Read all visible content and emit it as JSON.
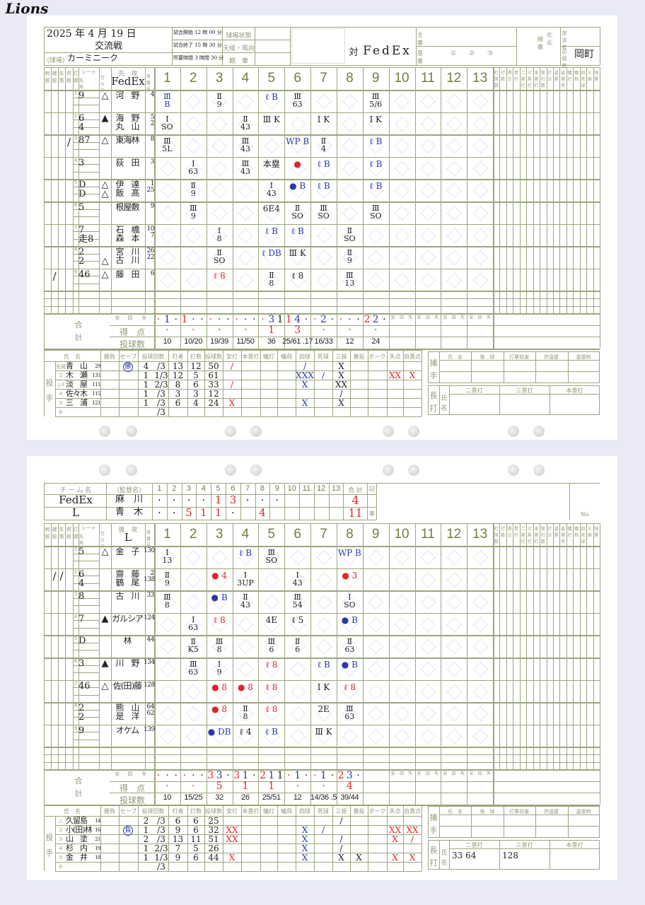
{
  "colors": {
    "grid": "#9aa67e",
    "inning_number": "#6e7f3e",
    "blue_ink": "#2a3aa8",
    "red_ink": "#e0262a",
    "green_ink": "#2f8a5a",
    "background": "#e9eaf6"
  },
  "header": {
    "date": "2025 年 4 月 19 日",
    "game_type": "交流戦",
    "venue_label": "(球場)",
    "venue": "カーミニーク",
    "start": "試合開始 12 時 00 分",
    "end": "試合終了 15 時 30 分",
    "duration": "所要時間 3 時間 30 分",
    "field_state": "球場状態",
    "weather": "天候・風向",
    "attendance": "観　衆",
    "logo": "Lions",
    "vs": "対",
    "opponent": "FedEx",
    "umpire_home": "主審",
    "umpire_base": "塁審",
    "base_nums": "①　　②　　③",
    "umpire_line": "線審",
    "line_lr": "㊧　㊨",
    "broadcaster": "放送者",
    "scorer_label": "記録者",
    "scorer": "岡町"
  },
  "col_labels": {
    "small": [
      "刺殺",
      "補殺",
      "失策",
      "併殺",
      "打順"
    ],
    "seat": "シート",
    "starter": "先発",
    "bat_side": "打ち方",
    "number": "背番号",
    "innings": [
      "1",
      "2",
      "3",
      "4",
      "5",
      "6",
      "7",
      "8",
      "9",
      "10",
      "11",
      "12",
      "13"
    ],
    "stats": [
      "打席数",
      "打数",
      "得点",
      "単打",
      "二塁打",
      "三塁打",
      "本塁打",
      "塁打数",
      "打点",
      "盗塁",
      "盗塁死",
      "犠打",
      "犠飛",
      "四死球",
      "三振",
      "残塁"
    ],
    "totals": "合計",
    "hit_walk_err": [
      "安",
      "四",
      "失"
    ],
    "runs": "得　点",
    "pitches": "投球数"
  },
  "pitch_cols": [
    "氏　名",
    "勝負",
    "セーブ",
    "投球回数",
    "打者",
    "打数",
    "投球数",
    "安打",
    "本塁打",
    "犠打",
    "犠飛",
    "四球",
    "死球",
    "三振",
    "暴投",
    "ボーク",
    "失点",
    "自責点"
  ],
  "pitch_side": "投手",
  "catcher_box": {
    "label": "捕手",
    "cols": [
      "氏　名",
      "逸　球",
      "打撃妨害",
      "許盗塁",
      "盗塁刺"
    ]
  },
  "xbh_box": {
    "label": "長打",
    "name": "氏名",
    "cols": [
      "二塁打",
      "三塁打",
      "本塁打"
    ]
  },
  "top": {
    "side": "先　攻",
    "team": "FedEx",
    "lineup": [
      {
        "o": "1",
        "seat": "9",
        "tri": "△",
        "name": "河　野",
        "no": "4"
      },
      {
        "o": "2",
        "seat": "6\n4",
        "tri": "▲",
        "name": "海　野\n丸　山",
        "no": "5\n2"
      },
      {
        "o": "3",
        "seat": "87",
        "tri": "△",
        "name": "東海林",
        "no": "8",
        "marks": [
          "",
          "",
          "",
          "/"
        ]
      },
      {
        "o": "4",
        "seat": "3",
        "tri": "",
        "name": "荻　田",
        "no": "3"
      },
      {
        "o": "5",
        "seat": "D\nD",
        "tri": "△\n△",
        "name": "伊　達\n飯　髙",
        "no": "1\n25"
      },
      {
        "o": "6",
        "seat": "5",
        "tri": "",
        "name": "根屋敷",
        "no": "9"
      },
      {
        "o": "7",
        "seat": "7\n走8",
        "tri": "",
        "name": "石　橋\n森　本",
        "no": "10\n7"
      },
      {
        "o": "8",
        "seat": "2\n2",
        "tri": "\n△",
        "name": "宮　川\n古　川",
        "no": "26\n22"
      },
      {
        "o": "9",
        "seat": "46",
        "tri": "△",
        "name": "藤　田",
        "no": "6",
        "marks": [
          "",
          "/",
          "",
          ""
        ]
      }
    ],
    "plays": [
      [
        1,
        1,
        "Ⅲ\nB",
        "b"
      ],
      [
        1,
        3,
        "Ⅱ\n9",
        "k"
      ],
      [
        1,
        5,
        "ℓ B",
        "b"
      ],
      [
        1,
        6,
        "Ⅲ\n63",
        "k"
      ],
      [
        1,
        9,
        "Ⅲ\n5/6",
        "k"
      ],
      [
        2,
        1,
        "I\nSO",
        "k"
      ],
      [
        2,
        4,
        "Ⅱ\n43",
        "k"
      ],
      [
        2,
        5,
        "Ⅲ K",
        "k"
      ],
      [
        2,
        7,
        "I K",
        "k"
      ],
      [
        2,
        9,
        "I K",
        "k"
      ],
      [
        3,
        1,
        "Ⅲ\n5L",
        "k"
      ],
      [
        3,
        4,
        "Ⅲ\n43",
        "k"
      ],
      [
        3,
        6,
        "WP B",
        "b"
      ],
      [
        3,
        7,
        "Ⅱ\n4",
        "k"
      ],
      [
        3,
        9,
        "ℓ B",
        "b"
      ],
      [
        4,
        2,
        "I\n63",
        "k"
      ],
      [
        4,
        4,
        "Ⅲ\n43",
        "k"
      ],
      [
        4,
        5,
        "本塁",
        "k"
      ],
      [
        4,
        6,
        "●",
        "r"
      ],
      [
        4,
        7,
        "ℓ B",
        "b"
      ],
      [
        4,
        9,
        "ℓ B",
        "b"
      ],
      [
        5,
        2,
        "Ⅱ\n9",
        "k"
      ],
      [
        5,
        5,
        "I\n43",
        "k"
      ],
      [
        5,
        6,
        "● B",
        "b"
      ],
      [
        5,
        7,
        "ℓ B",
        "b"
      ],
      [
        5,
        9,
        "ℓ B",
        "b"
      ],
      [
        6,
        2,
        "Ⅲ\n9",
        "k"
      ],
      [
        6,
        5,
        "6E4",
        "k"
      ],
      [
        6,
        6,
        "Ⅱ\nSO",
        "k"
      ],
      [
        6,
        7,
        "Ⅲ\nSO",
        "k"
      ],
      [
        6,
        9,
        "Ⅲ\nSO",
        "k"
      ],
      [
        7,
        3,
        "I\n8",
        "k"
      ],
      [
        7,
        5,
        "ℓ B",
        "b"
      ],
      [
        7,
        6,
        "ℓ B",
        "b"
      ],
      [
        7,
        8,
        "Ⅱ\nSO",
        "k"
      ],
      [
        8,
        3,
        "Ⅱ\nSO",
        "k"
      ],
      [
        8,
        5,
        "ℓ DB",
        "b"
      ],
      [
        8,
        6,
        "Ⅲ K",
        "k"
      ],
      [
        8,
        8,
        "Ⅱ\n9",
        "k"
      ],
      [
        9,
        3,
        "ℓ 8",
        "r"
      ],
      [
        9,
        5,
        "Ⅱ\n8",
        "k"
      ],
      [
        9,
        6,
        "ℓ 8",
        "k"
      ],
      [
        9,
        8,
        "Ⅲ\n13",
        "k"
      ]
    ],
    "totals": {
      "hwe": [
        [
          "·",
          "1",
          "·"
        ],
        [
          "1",
          "·",
          "·"
        ],
        [
          "·",
          "·",
          "·"
        ],
        [
          "·",
          "·",
          "·"
        ],
        [
          "·",
          "3",
          "1"
        ],
        [
          "1",
          "4",
          "·"
        ],
        [
          "·",
          "2",
          "·"
        ],
        [
          "·",
          "·",
          "·"
        ],
        [
          "2",
          "2",
          "·"
        ]
      ],
      "hwe_colors": [
        "r",
        "b",
        "k"
      ],
      "runs": [
        "·",
        "·",
        "·",
        "·",
        "1",
        "3",
        "·",
        "·",
        "·"
      ],
      "pitches": [
        "10",
        "10/20",
        "19/39",
        "11/50",
        "36",
        "25/61 .17",
        "16/33",
        "12",
        "24"
      ]
    },
    "pitchers": [
      {
        "no": "先発",
        "name": "青　山",
        "num": "29",
        "wl": "",
        "save": "勝",
        "ip": "4",
        "ipf": "/3",
        "bf": "13",
        "ab": "12",
        "np": "50",
        "h": "/",
        "hr": "",
        "sh": "",
        "sf": "",
        "bb": "/",
        "hbp": "",
        "so": "X",
        "wp": "",
        "bk": "",
        "r": "",
        "er": ""
      },
      {
        "no": "2",
        "name": "木　瀬",
        "num": "131",
        "wl": "",
        "save": "",
        "ip": "1",
        "ipf": "1/3",
        "bf": "12",
        "ab": "5",
        "np": "61",
        "h": "",
        "hr": "",
        "sh": "",
        "sf": "",
        "bb": "XXX",
        "hbp": "/",
        "so": "X",
        "wp": "",
        "bk": "",
        "r": "XX",
        "er": "X"
      },
      {
        "no": "△3",
        "name": "淡　屋",
        "num": "111",
        "wl": "",
        "save": "",
        "ip": "1",
        "ipf": "2/3",
        "bf": "8",
        "ab": "6",
        "np": "33",
        "h": "/",
        "hr": "",
        "sh": "",
        "sf": "",
        "bb": "X",
        "hbp": "",
        "so": "XX",
        "wp": "",
        "bk": "",
        "r": "",
        "er": ""
      },
      {
        "no": "4",
        "name": "佐々木",
        "num": "115",
        "wl": "",
        "save": "",
        "ip": "1",
        "ipf": "/3",
        "bf": "3",
        "ab": "3",
        "np": "12",
        "h": "",
        "hr": "",
        "sh": "",
        "sf": "",
        "bb": "",
        "hbp": "",
        "so": "/",
        "wp": "",
        "bk": "",
        "r": "",
        "er": ""
      },
      {
        "no": "5",
        "name": "三　浦",
        "num": "121",
        "wl": "",
        "save": "",
        "ip": "1",
        "ipf": "/3",
        "bf": "6",
        "ab": "4",
        "np": "24",
        "h": "X",
        "hr": "",
        "sh": "",
        "sf": "",
        "bb": "X",
        "hbp": "",
        "so": "X",
        "wp": "",
        "bk": "",
        "r": "",
        "er": ""
      },
      {
        "no": "6",
        "name": "",
        "num": "",
        "wl": "",
        "save": "",
        "ip": "",
        "ipf": "/3",
        "bf": "",
        "ab": "",
        "np": "",
        "h": "",
        "hr": "",
        "sh": "",
        "sf": "",
        "bb": "",
        "hbp": "",
        "so": "",
        "wp": "",
        "bk": "",
        "r": "",
        "er": ""
      }
    ],
    "xbh": [
      "",
      "",
      ""
    ]
  },
  "linescore": {
    "headers": [
      "チ ー ム 名",
      "(監督名)",
      "1",
      "2",
      "3",
      "4",
      "5",
      "6",
      "7",
      "8",
      "9",
      "10",
      "11",
      "12",
      "13",
      "合 計",
      "記",
      "事",
      "No."
    ],
    "rows": [
      {
        "team": "FedEx",
        "manager": "麻　川",
        "inn": [
          "·",
          "·",
          "·",
          "·",
          "1",
          "3",
          "·",
          "·",
          "·",
          "",
          "",
          "",
          ""
        ],
        "total": "4"
      },
      {
        "team": "L",
        "manager": "青　木",
        "inn": [
          "·",
          "·",
          "5",
          "1",
          "1",
          "·",
          "",
          "4",
          "",
          "",
          "",
          "",
          ""
        ],
        "total": "11"
      }
    ]
  },
  "bottom": {
    "side": "後　攻",
    "team": "L",
    "lineup": [
      {
        "o": "1",
        "seat": "5",
        "tri": "△",
        "name": "金　子",
        "no": "130"
      },
      {
        "o": "2",
        "seat": "6\n4",
        "tri": "",
        "name": "齋　藤\n鶴　尾",
        "no": "2\n138",
        "marks": [
          "",
          "/",
          "/",
          ""
        ]
      },
      {
        "o": "3",
        "seat": "8",
        "tri": "",
        "name": "古　川",
        "no": "33"
      },
      {
        "o": "4",
        "seat": "7",
        "tri": "▲",
        "name": "ガルシア",
        "no": "124"
      },
      {
        "o": "5",
        "seat": "D",
        "tri": "",
        "name": "林",
        "no": "44"
      },
      {
        "o": "6",
        "seat": "3",
        "tri": "▲",
        "name": "川　野",
        "no": "134"
      },
      {
        "o": "7",
        "seat": "46",
        "tri": "△",
        "name": "佐(田)藤",
        "no": "128"
      },
      {
        "o": "8",
        "seat": "2\n2",
        "tri": "",
        "name": "熊　山\n是　洋",
        "no": "64\n62"
      },
      {
        "o": "9",
        "seat": "9",
        "tri": "",
        "name": "オケム",
        "no": "139"
      }
    ],
    "plays": [
      [
        1,
        1,
        "I\n13",
        "k"
      ],
      [
        1,
        4,
        "ℓ B",
        "b"
      ],
      [
        1,
        5,
        "Ⅲ\nSO",
        "k"
      ],
      [
        1,
        8,
        "WP B",
        "b"
      ],
      [
        2,
        1,
        "Ⅱ\n9",
        "k"
      ],
      [
        2,
        3,
        "● 4",
        "r"
      ],
      [
        2,
        4,
        "I\n3UP",
        "k"
      ],
      [
        2,
        6,
        "I\n43",
        "k"
      ],
      [
        2,
        8,
        "● 3",
        "r"
      ],
      [
        3,
        1,
        "Ⅲ\n8",
        "k"
      ],
      [
        3,
        3,
        "● B",
        "b"
      ],
      [
        3,
        4,
        "Ⅱ\n43",
        "k"
      ],
      [
        3,
        6,
        "Ⅲ\n54",
        "k"
      ],
      [
        3,
        8,
        "I\nSO",
        "k"
      ],
      [
        4,
        2,
        "I\n63",
        "k"
      ],
      [
        4,
        3,
        "ℓ 8",
        "r"
      ],
      [
        4,
        5,
        "4E",
        "k"
      ],
      [
        4,
        6,
        "ℓ 5",
        "k"
      ],
      [
        4,
        8,
        "● B",
        "b"
      ],
      [
        5,
        2,
        "Ⅱ\nK5",
        "k"
      ],
      [
        5,
        3,
        "Ⅲ\n8",
        "k"
      ],
      [
        5,
        5,
        "Ⅲ\n6",
        "k"
      ],
      [
        5,
        6,
        "Ⅱ\n6",
        "k"
      ],
      [
        5,
        8,
        "Ⅱ\n63",
        "k"
      ],
      [
        6,
        2,
        "Ⅲ\n63",
        "k"
      ],
      [
        6,
        3,
        "I\n9",
        "k"
      ],
      [
        6,
        5,
        "ℓ 8",
        "r"
      ],
      [
        6,
        7,
        "ℓ B",
        "b"
      ],
      [
        6,
        8,
        "● B",
        "b"
      ],
      [
        7,
        3,
        "● 8",
        "r"
      ],
      [
        7,
        4,
        "● 8",
        "r"
      ],
      [
        7,
        5,
        "ℓ 8",
        "r"
      ],
      [
        7,
        7,
        "I K",
        "k"
      ],
      [
        7,
        8,
        "ℓ 8",
        "r"
      ],
      [
        8,
        3,
        "● 8",
        "r"
      ],
      [
        8,
        4,
        "Ⅱ\n8",
        "k"
      ],
      [
        8,
        5,
        "ℓ 8",
        "r"
      ],
      [
        8,
        7,
        "2E",
        "k"
      ],
      [
        8,
        8,
        "Ⅲ\n63",
        "k"
      ],
      [
        9,
        3,
        "● DB",
        "b"
      ],
      [
        9,
        4,
        "ℓ 4",
        "k"
      ],
      [
        9,
        5,
        "ℓ B",
        "b"
      ],
      [
        9,
        7,
        "Ⅲ K",
        "k"
      ]
    ],
    "totals": {
      "hwe": [
        [
          "·",
          "·",
          "·"
        ],
        [
          "·",
          "·",
          "·"
        ],
        [
          "3",
          "3",
          "·"
        ],
        [
          "3",
          "1",
          "·"
        ],
        [
          "2",
          "1",
          "1"
        ],
        [
          "·",
          "1",
          "·"
        ],
        [
          "·",
          "1",
          "·"
        ],
        [
          "2",
          "3",
          "·"
        ],
        [
          "",
          "",
          ""
        ]
      ],
      "hwe_colors": [
        "r",
        "b",
        "k"
      ],
      "runs": [
        "·",
        "·",
        "5",
        "1",
        "1",
        "·",
        "·",
        "4",
        ""
      ],
      "pitches": [
        "10",
        "15/25",
        "32",
        "26",
        "25/51",
        "12",
        "14/36 .5",
        "39/44",
        ""
      ]
    },
    "pitchers": [
      {
        "no": "△",
        "name": "久留島",
        "num": "14",
        "wl": "",
        "save": "",
        "ip": "2",
        "ipf": "/3",
        "bf": "6",
        "ab": "6",
        "np": "25",
        "h": "",
        "hr": "",
        "sh": "",
        "sf": "",
        "bb": "",
        "hbp": "",
        "so": "/",
        "wp": "",
        "bk": "",
        "r": "",
        "er": ""
      },
      {
        "no": "2",
        "name": "小(田)林",
        "num": "16",
        "wl": "",
        "save": "負",
        "ip": "1",
        "ipf": "/3",
        "bf": "9",
        "ab": "6",
        "np": "32",
        "h": "XX",
        "hr": "",
        "sh": "",
        "sf": "",
        "bb": "X",
        "hbp": "/",
        "so": "",
        "wp": "",
        "bk": "",
        "r": "XX",
        "er": "XX"
      },
      {
        "no": "3",
        "name": "山　塗",
        "num": "21",
        "wl": "",
        "save": "",
        "ip": "2",
        "ipf": "/3",
        "bf": "13",
        "ab": "11",
        "np": "51",
        "h": "XX",
        "hr": "",
        "sh": "",
        "sf": "",
        "bb": "X",
        "hbp": "",
        "so": "/",
        "wp": "",
        "bk": "",
        "r": "X",
        "er": "/"
      },
      {
        "no": "4",
        "name": "杉　内",
        "num": "19",
        "wl": "",
        "save": "",
        "ip": "1",
        "ipf": "2/3",
        "bf": "7",
        "ab": "5",
        "np": "26",
        "h": "",
        "hr": "",
        "sh": "",
        "sf": "",
        "bb": "X",
        "hbp": "",
        "so": "/",
        "wp": "",
        "bk": "",
        "r": "",
        "er": ""
      },
      {
        "no": "5",
        "name": "金　井",
        "num": "18",
        "wl": "",
        "save": "",
        "ip": "1",
        "ipf": "1/3",
        "bf": "9",
        "ab": "6",
        "np": "44",
        "h": "X",
        "hr": "",
        "sh": "",
        "sf": "",
        "bb": "X",
        "hbp": "",
        "so": "X",
        "wp": "X",
        "bk": "",
        "r": "X",
        "er": "X"
      },
      {
        "no": "6",
        "name": "",
        "num": "",
        "wl": "",
        "save": "",
        "ip": "",
        "ipf": "/3",
        "bf": "",
        "ab": "",
        "np": "",
        "h": "",
        "hr": "",
        "sh": "",
        "sf": "",
        "bb": "",
        "hbp": "",
        "so": "",
        "wp": "",
        "bk": "",
        "r": "",
        "er": ""
      }
    ],
    "xbh": [
      "33 64",
      "128",
      ""
    ]
  }
}
